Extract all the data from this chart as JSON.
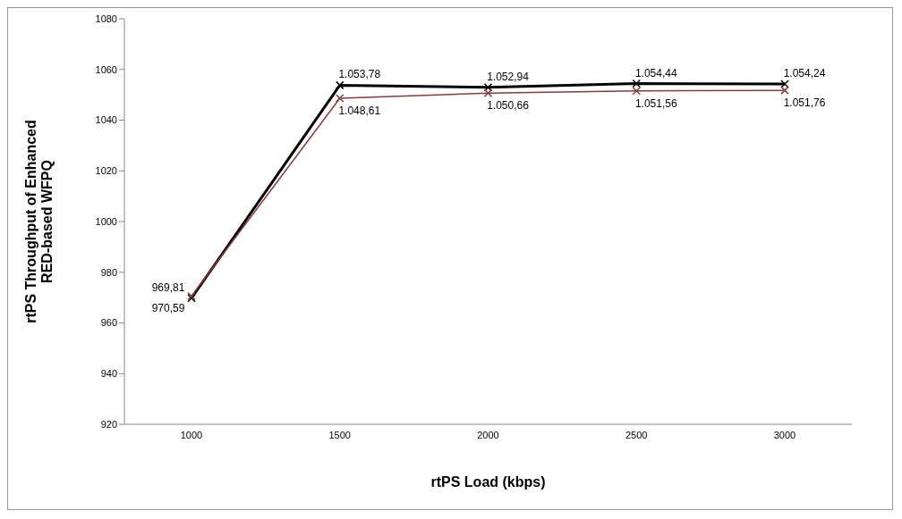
{
  "chart_data": {
    "type": "line",
    "xlabel": "rtPS Load (kbps)",
    "ylabel": "rtPS Throughput of Enhanced RED-based WFPQ",
    "categories": [
      "1000",
      "1500",
      "2000",
      "2500",
      "3000"
    ],
    "series": [
      {
        "color": "#000000",
        "values": [
          969.81,
          1053.78,
          1052.94,
          1054.44,
          1054.24
        ],
        "value_labels": [
          "969,81",
          "1.053,78",
          "1.052,94",
          "1.054,44",
          "1.054,24"
        ]
      },
      {
        "color": "#8b3a3a",
        "values": [
          970.59,
          1048.61,
          1050.66,
          1051.56,
          1051.76
        ],
        "value_labels": [
          "970,59",
          "1.048,61",
          "1.050,66",
          "1.051,56",
          "1.051,76"
        ]
      }
    ],
    "ylim": [
      920,
      1080
    ],
    "yticks": [
      920,
      940,
      960,
      980,
      1000,
      1020,
      1040,
      1060,
      1080
    ],
    "grid": false,
    "legend": false,
    "marker": "cross",
    "line_style": "solid"
  }
}
